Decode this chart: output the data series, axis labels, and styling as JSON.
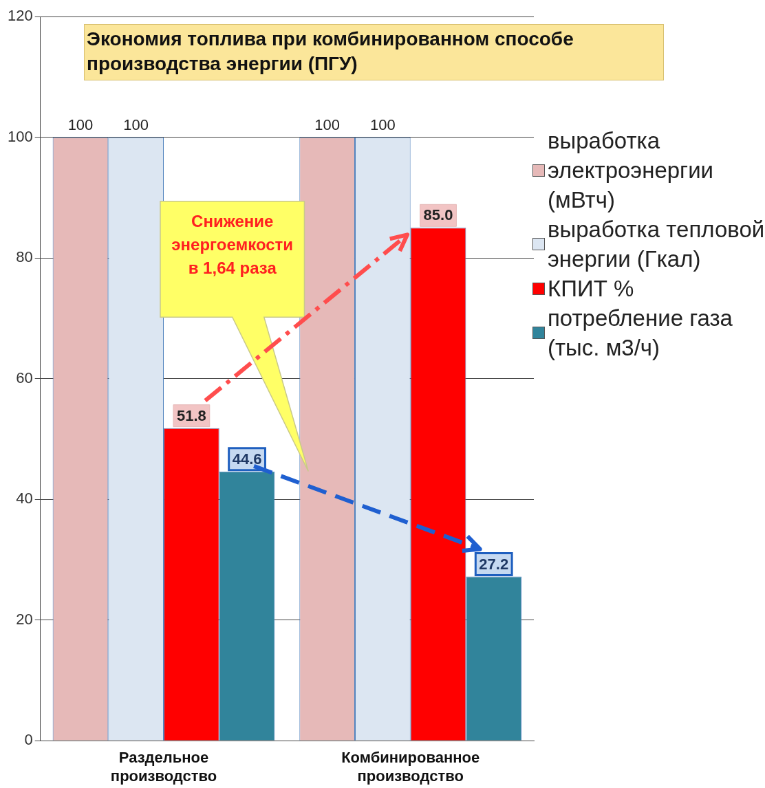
{
  "chart_data": {
    "type": "bar",
    "title": "Экономия  топлива  при  комбинированном способе производства энергии   (ПГУ)",
    "categories": [
      "Раздельное производство",
      "Комбинированное производство"
    ],
    "series": [
      {
        "name": "выработка электроэнергии (мВтч)",
        "color": "#e6b9b8",
        "values": [
          100,
          100
        ],
        "value_labels": [
          "100",
          "100"
        ]
      },
      {
        "name": "выработка тепловой энергии (Гкал)",
        "color": "#dce6f2",
        "values": [
          100,
          100
        ],
        "value_labels": [
          "100",
          "100"
        ]
      },
      {
        "name": "КПИТ %",
        "color": "#ff0000",
        "values": [
          51.8,
          85.0
        ],
        "value_labels": [
          "51.8",
          "85.0"
        ]
      },
      {
        "name": "потребление газа (тыс. м3/ч)",
        "color": "#31849b",
        "values": [
          44.6,
          27.2
        ],
        "value_labels": [
          "44.6",
          "27.2"
        ]
      }
    ],
    "ylim": [
      0,
      120
    ],
    "yticks": [
      0,
      20,
      40,
      60,
      80,
      100,
      120
    ],
    "grid": "y",
    "legend": "right",
    "annotations": [
      "Снижение энергоемкости в 1,64 раза"
    ]
  }
}
